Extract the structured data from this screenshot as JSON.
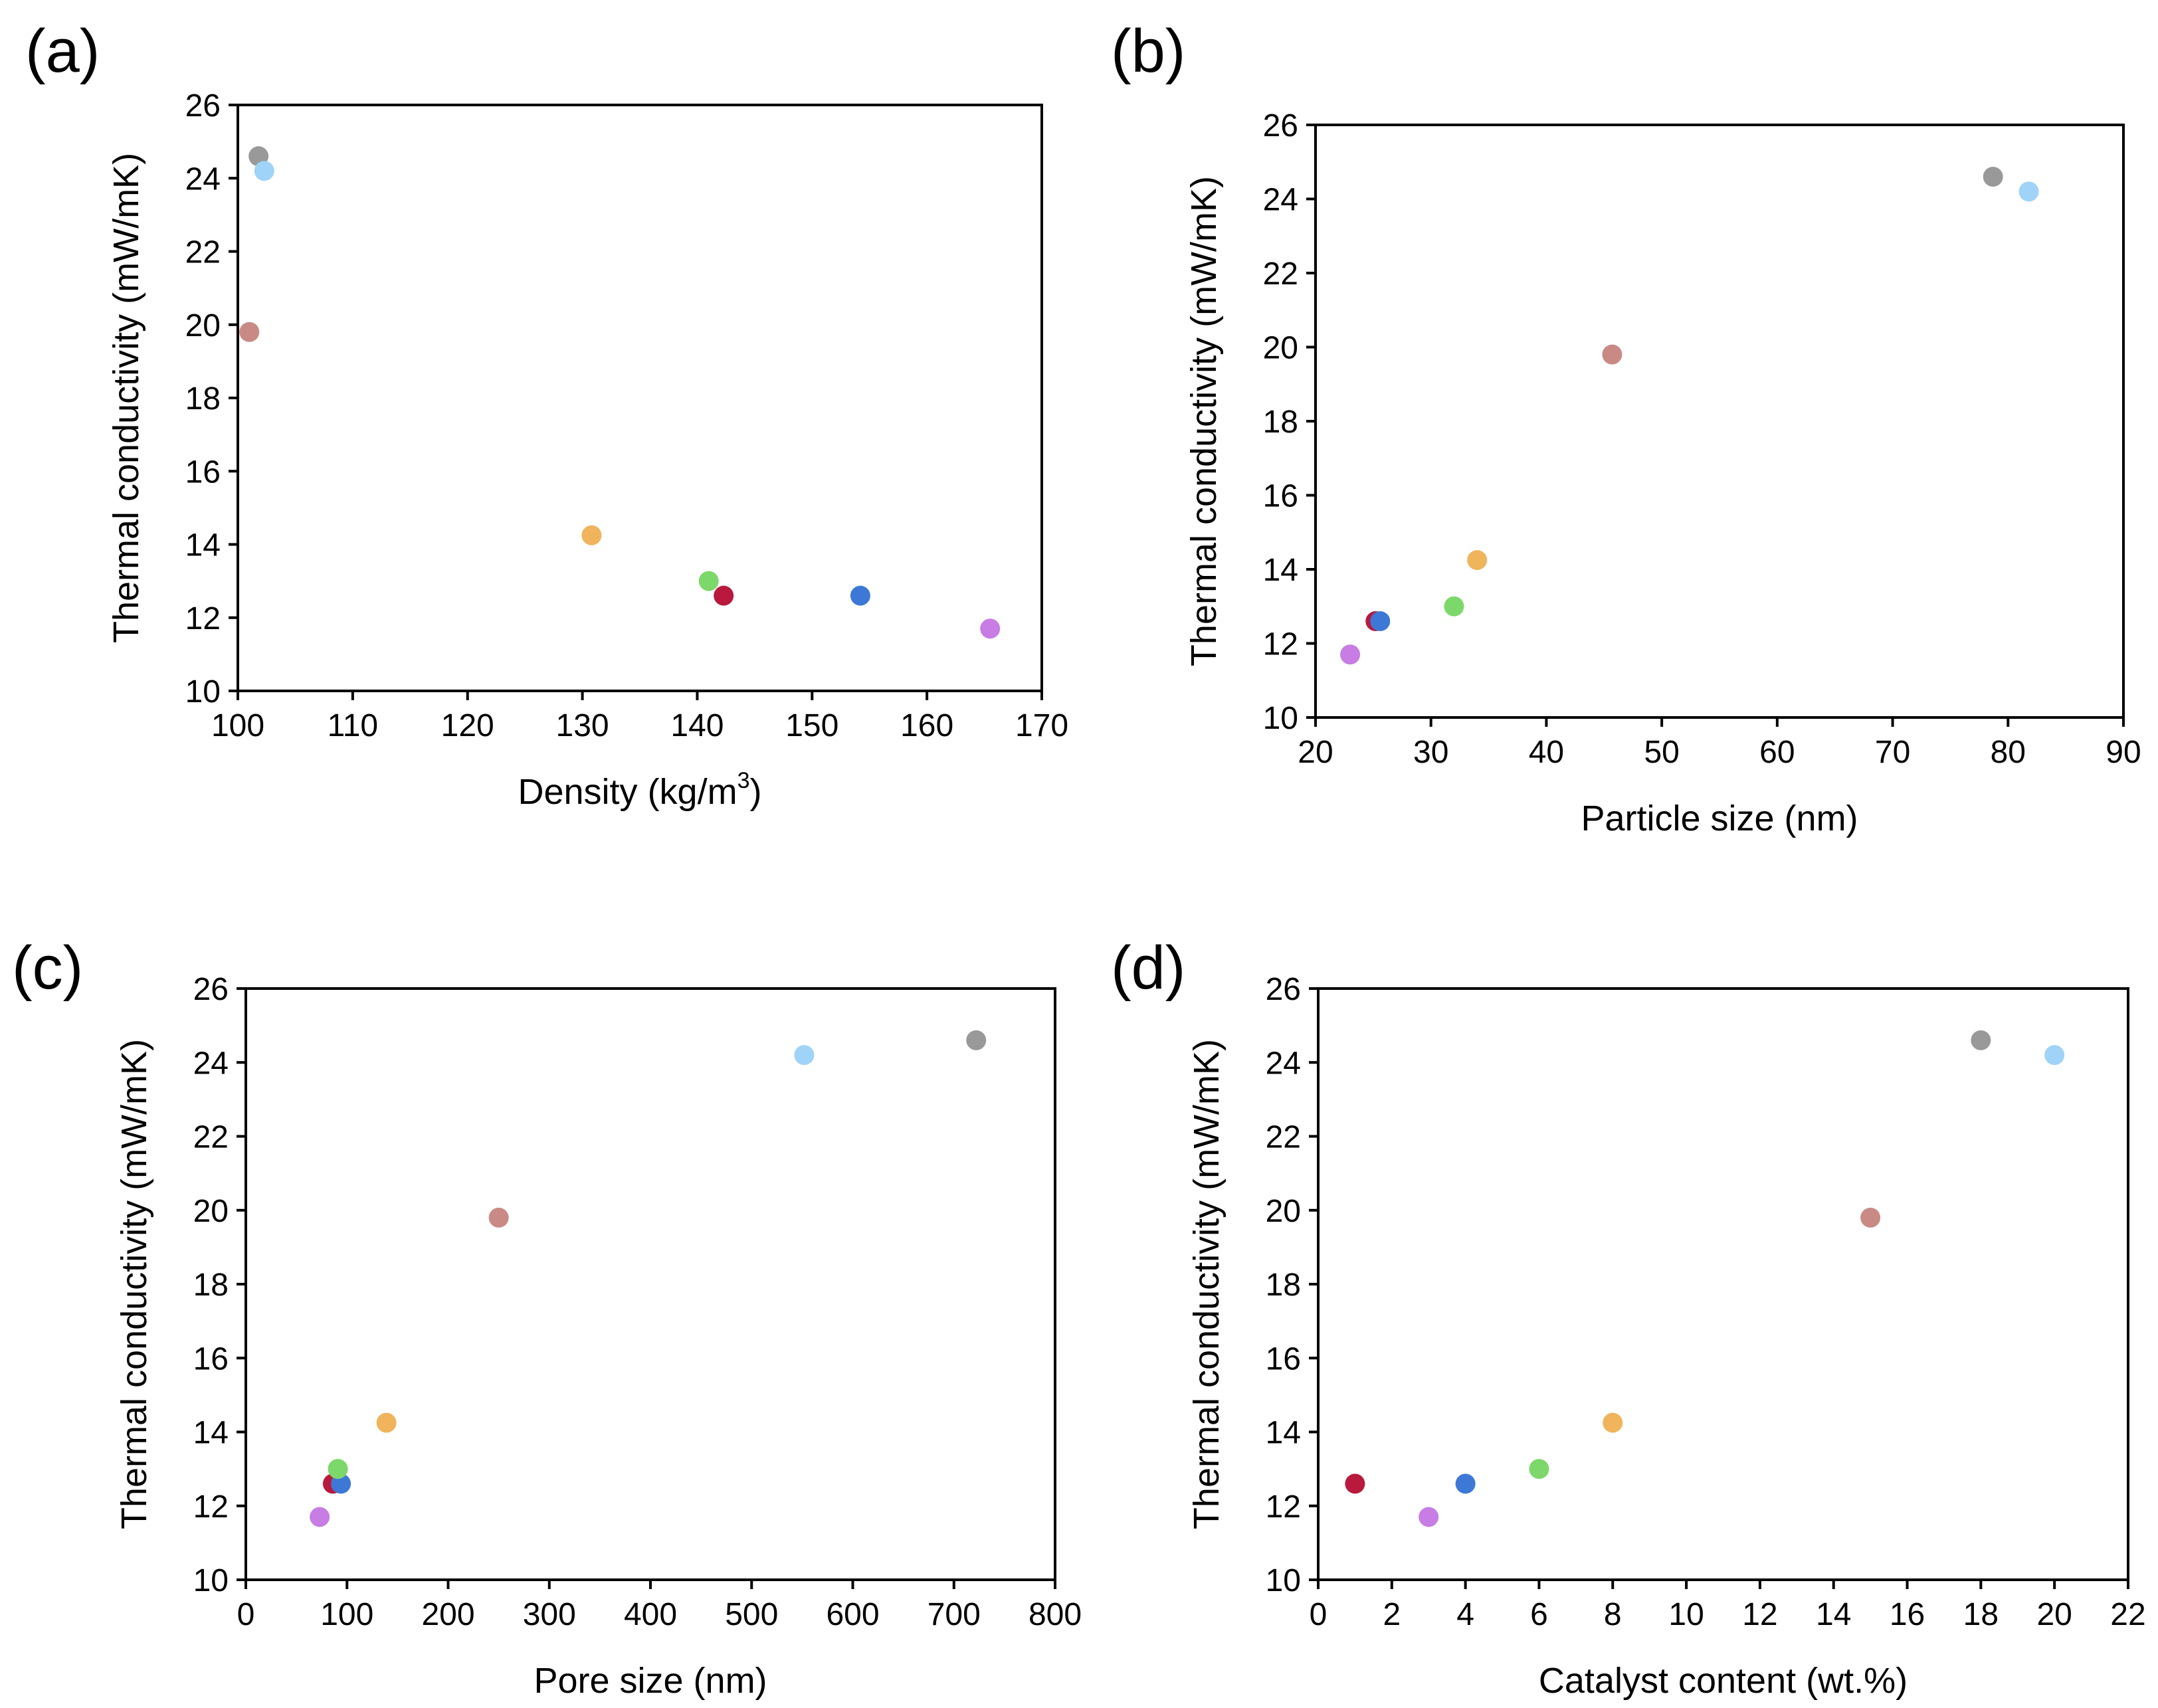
{
  "figure": {
    "panels": [
      "a",
      "b",
      "c",
      "d"
    ]
  },
  "chart_data": [
    {
      "type": "scatter",
      "panel_label": "(a)",
      "title": "",
      "xlabel": "Density (kg/m",
      "xlabel_sup": "3",
      "xlabel_tail": ")",
      "ylabel": "Thermal conductivity (mW/mK)",
      "xlim": [
        100,
        170
      ],
      "ylim": [
        10,
        26
      ],
      "xticks": [
        100,
        110,
        120,
        130,
        140,
        150,
        160,
        170
      ],
      "yticks": [
        10,
        12,
        14,
        16,
        18,
        20,
        22,
        24,
        26
      ],
      "points": [
        {
          "x": 101.8,
          "y": 24.6,
          "color": "#999999"
        },
        {
          "x": 102.3,
          "y": 24.2,
          "color": "#9fd3f7"
        },
        {
          "x": 101.0,
          "y": 19.8,
          "color": "#c98a86"
        },
        {
          "x": 130.8,
          "y": 14.25,
          "color": "#f0b45c"
        },
        {
          "x": 141.0,
          "y": 13.0,
          "color": "#7cd86a"
        },
        {
          "x": 142.3,
          "y": 12.6,
          "color": "#b8193d"
        },
        {
          "x": 154.2,
          "y": 12.6,
          "color": "#3d78d6"
        },
        {
          "x": 165.5,
          "y": 11.7,
          "color": "#c77de3"
        }
      ]
    },
    {
      "type": "scatter",
      "panel_label": "(b)",
      "title": "",
      "xlabel": "Particle size (nm)",
      "ylabel": "Thermal conductivity (mW/mK)",
      "xlim": [
        20,
        90
      ],
      "ylim": [
        10,
        26
      ],
      "xticks": [
        20,
        30,
        40,
        50,
        60,
        70,
        80,
        90
      ],
      "yticks": [
        10,
        12,
        14,
        16,
        18,
        20,
        22,
        24,
        26
      ],
      "points": [
        {
          "x": 78.7,
          "y": 24.6,
          "color": "#999999"
        },
        {
          "x": 81.8,
          "y": 24.2,
          "color": "#9fd3f7"
        },
        {
          "x": 45.7,
          "y": 19.8,
          "color": "#c98a86"
        },
        {
          "x": 34.0,
          "y": 14.25,
          "color": "#f0b45c"
        },
        {
          "x": 32.0,
          "y": 13.0,
          "color": "#7cd86a"
        },
        {
          "x": 25.2,
          "y": 12.6,
          "color": "#b8193d"
        },
        {
          "x": 25.6,
          "y": 12.6,
          "color": "#3d78d6"
        },
        {
          "x": 23.0,
          "y": 11.7,
          "color": "#c77de3"
        }
      ]
    },
    {
      "type": "scatter",
      "panel_label": "(c)",
      "title": "",
      "xlabel": "Pore size (nm)",
      "ylabel": "Thermal conductivity (mW/mK)",
      "xlim": [
        0,
        800
      ],
      "ylim": [
        10,
        26
      ],
      "xticks": [
        0,
        100,
        200,
        300,
        400,
        500,
        600,
        700,
        800
      ],
      "yticks": [
        10,
        12,
        14,
        16,
        18,
        20,
        22,
        24,
        26
      ],
      "points": [
        {
          "x": 722,
          "y": 24.6,
          "color": "#999999"
        },
        {
          "x": 552,
          "y": 24.2,
          "color": "#9fd3f7"
        },
        {
          "x": 250,
          "y": 19.8,
          "color": "#c98a86"
        },
        {
          "x": 139,
          "y": 14.25,
          "color": "#f0b45c"
        },
        {
          "x": 86,
          "y": 12.6,
          "color": "#b8193d"
        },
        {
          "x": 94,
          "y": 12.6,
          "color": "#3d78d6"
        },
        {
          "x": 91,
          "y": 13.0,
          "color": "#7cd86a"
        },
        {
          "x": 73,
          "y": 11.7,
          "color": "#c77de3"
        }
      ]
    },
    {
      "type": "scatter",
      "panel_label": "(d)",
      "title": "",
      "xlabel": "Catalyst content (wt.%)",
      "ylabel": "Thermal conductivity (mW/mK)",
      "xlim": [
        0,
        22
      ],
      "ylim": [
        10,
        26
      ],
      "xticks": [
        0,
        2,
        4,
        6,
        8,
        10,
        12,
        14,
        16,
        18,
        20,
        22
      ],
      "yticks": [
        10,
        12,
        14,
        16,
        18,
        20,
        22,
        24,
        26
      ],
      "points": [
        {
          "x": 18,
          "y": 24.6,
          "color": "#999999"
        },
        {
          "x": 20,
          "y": 24.2,
          "color": "#9fd3f7"
        },
        {
          "x": 15,
          "y": 19.8,
          "color": "#c98a86"
        },
        {
          "x": 8,
          "y": 14.25,
          "color": "#f0b45c"
        },
        {
          "x": 6,
          "y": 13.0,
          "color": "#7cd86a"
        },
        {
          "x": 1,
          "y": 12.6,
          "color": "#b8193d"
        },
        {
          "x": 4,
          "y": 12.6,
          "color": "#3d78d6"
        },
        {
          "x": 3,
          "y": 11.7,
          "color": "#c77de3"
        }
      ]
    }
  ]
}
